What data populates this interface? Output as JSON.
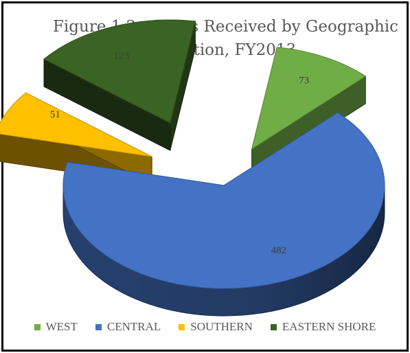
{
  "chart_data": {
    "type": "pie",
    "title_line1": "Figure 1.2 - Cases Received by Geographic",
    "title_line2": "Location, FY2013",
    "categories": [
      "WEST",
      "CENTRAL",
      "SOUTHERN",
      "EASTERN SHORE"
    ],
    "values": [
      73,
      482,
      51,
      123
    ],
    "colors": [
      "#70ad47",
      "#4472c4",
      "#ffc000",
      "#3a6324"
    ],
    "legend_position": "bottom",
    "style": "3d-exploded"
  }
}
